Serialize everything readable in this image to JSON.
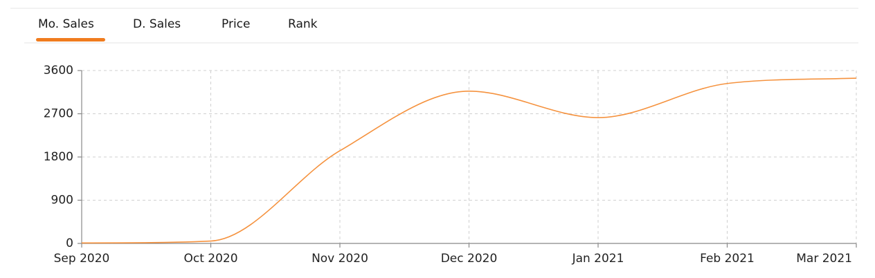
{
  "tabs": [
    "Mo. Sales",
    "D. Sales",
    "Price",
    "Rank"
  ],
  "chart_data": {
    "type": "line",
    "categories": [
      "Sep 2020",
      "Oct 2020",
      "Nov 2020",
      "Dec 2020",
      "Jan 2021",
      "Feb 2021",
      "Mar 2021"
    ],
    "series": [
      {
        "color": "#f5923e",
        "values": [
          10,
          50,
          1930,
          3170,
          2620,
          3330,
          3440
        ]
      }
    ],
    "ylim": [
      0,
      3600
    ],
    "yticks": [
      0,
      900,
      1800,
      2700,
      3600
    ],
    "grid": true
  }
}
